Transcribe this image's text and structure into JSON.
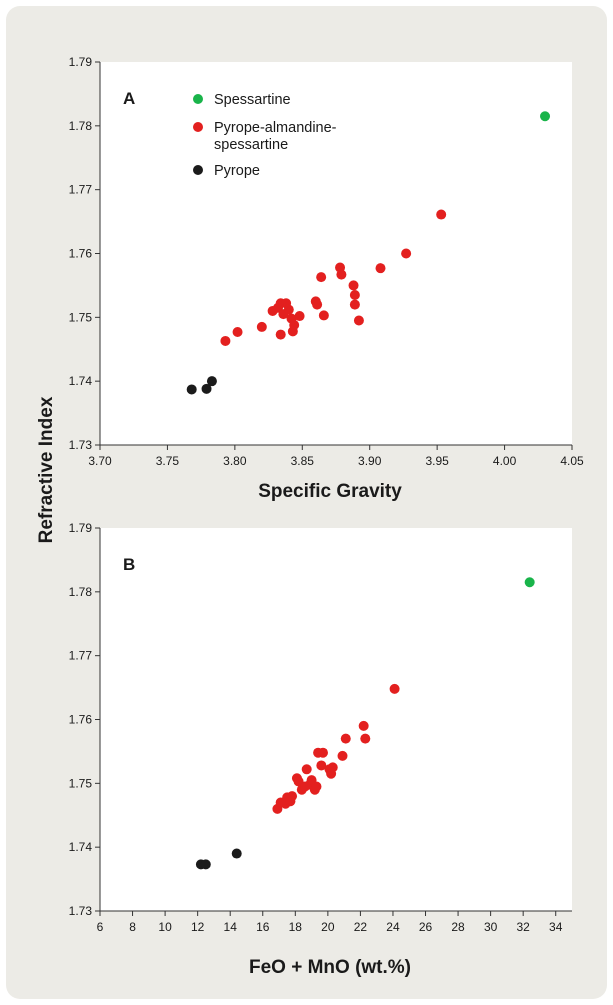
{
  "figure": {
    "shared_ylabel": "Refractive Index"
  },
  "legend": {
    "items": [
      {
        "label": "Spessartine",
        "color": "#19b44a"
      },
      {
        "label": "Pyrope-almandine-",
        "label2": "spessartine",
        "color": "#e3201f"
      },
      {
        "label": "Pyrope",
        "color": "#1b1b1b"
      }
    ]
  },
  "chart_data": [
    {
      "type": "scatter",
      "panel_label": "A",
      "xlabel": "Specific Gravity",
      "ylabel": "Refractive Index",
      "xlim": [
        3.7,
        4.05
      ],
      "ylim": [
        1.73,
        1.79
      ],
      "xticks": [
        "3.70",
        "3.75",
        "3.80",
        "3.85",
        "3.90",
        "3.95",
        "4.00",
        "4.05"
      ],
      "yticks": [
        "1.73",
        "1.74",
        "1.75",
        "1.76",
        "1.77",
        "1.78",
        "1.79"
      ],
      "legend_position": "top-left",
      "series": [
        {
          "name": "Spessartine",
          "color": "#19b44a",
          "points": [
            [
              4.03,
              1.7815
            ]
          ]
        },
        {
          "name": "Pyrope-almandine-spessartine",
          "color": "#e3201f",
          "points": [
            [
              3.793,
              1.7463
            ],
            [
              3.802,
              1.7477
            ],
            [
              3.82,
              1.7485
            ],
            [
              3.828,
              1.751
            ],
            [
              3.832,
              1.7515
            ],
            [
              3.834,
              1.7522
            ],
            [
              3.836,
              1.7505
            ],
            [
              3.838,
              1.7522
            ],
            [
              3.84,
              1.7512
            ],
            [
              3.842,
              1.7498
            ],
            [
              3.834,
              1.7473
            ],
            [
              3.843,
              1.7478
            ],
            [
              3.844,
              1.7488
            ],
            [
              3.848,
              1.7502
            ],
            [
              3.86,
              1.7525
            ],
            [
              3.861,
              1.752
            ],
            [
              3.864,
              1.7563
            ],
            [
              3.866,
              1.7503
            ],
            [
              3.878,
              1.7578
            ],
            [
              3.879,
              1.7567
            ],
            [
              3.888,
              1.755
            ],
            [
              3.889,
              1.7535
            ],
            [
              3.889,
              1.752
            ],
            [
              3.892,
              1.7495
            ],
            [
              3.908,
              1.7577
            ],
            [
              3.927,
              1.76
            ],
            [
              3.953,
              1.7661
            ]
          ]
        },
        {
          "name": "Pyrope",
          "color": "#1b1b1b",
          "points": [
            [
              3.768,
              1.7387
            ],
            [
              3.779,
              1.7388
            ],
            [
              3.783,
              1.74
            ]
          ]
        }
      ]
    },
    {
      "type": "scatter",
      "panel_label": "B",
      "xlabel": "FeO + MnO (wt.%)",
      "ylabel": "Refractive Index",
      "xlim": [
        6,
        35
      ],
      "ylim": [
        1.73,
        1.79
      ],
      "xticks": [
        "6",
        "8",
        "10",
        "12",
        "14",
        "16",
        "18",
        "20",
        "22",
        "24",
        "26",
        "28",
        "30",
        "32",
        "34"
      ],
      "yticks": [
        "1.73",
        "1.74",
        "1.75",
        "1.76",
        "1.77",
        "1.78",
        "1.79"
      ],
      "series": [
        {
          "name": "Spessartine",
          "color": "#19b44a",
          "points": [
            [
              32.4,
              1.7815
            ]
          ]
        },
        {
          "name": "Pyrope-almandine-spessartine",
          "color": "#e3201f",
          "points": [
            [
              16.9,
              1.746
            ],
            [
              17.1,
              1.747
            ],
            [
              17.4,
              1.7468
            ],
            [
              17.5,
              1.7478
            ],
            [
              17.7,
              1.7472
            ],
            [
              17.8,
              1.748
            ],
            [
              18.1,
              1.7508
            ],
            [
              18.2,
              1.7503
            ],
            [
              18.4,
              1.749
            ],
            [
              18.6,
              1.7495
            ],
            [
              18.7,
              1.7522
            ],
            [
              18.9,
              1.7498
            ],
            [
              19.0,
              1.7505
            ],
            [
              19.2,
              1.749
            ],
            [
              19.3,
              1.7495
            ],
            [
              19.4,
              1.7548
            ],
            [
              19.6,
              1.7528
            ],
            [
              19.7,
              1.7548
            ],
            [
              20.1,
              1.7522
            ],
            [
              20.2,
              1.7515
            ],
            [
              20.3,
              1.7525
            ],
            [
              20.9,
              1.7543
            ],
            [
              21.1,
              1.757
            ],
            [
              22.2,
              1.759
            ],
            [
              22.3,
              1.757
            ],
            [
              24.1,
              1.7648
            ]
          ]
        },
        {
          "name": "Pyrope",
          "color": "#1b1b1b",
          "points": [
            [
              12.2,
              1.7373
            ],
            [
              12.5,
              1.7373
            ],
            [
              14.4,
              1.739
            ]
          ]
        }
      ]
    }
  ]
}
